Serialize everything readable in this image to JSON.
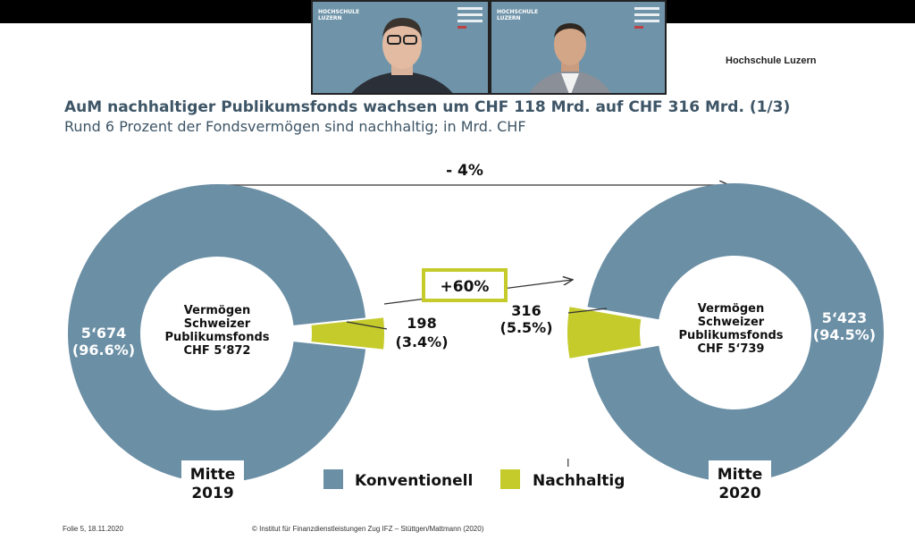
{
  "header": {
    "logo": "Hochschule Luzern",
    "title": "AuM nachhaltiger Publikumsfonds wachsen um CHF 118 Mrd. auf CHF 316 Mrd. (1/3)",
    "subtitle": "Rund 6 Prozent der Fondsvermögen sind nachhaltig; in Mrd. CHF"
  },
  "video": {
    "brand_line1": "HOCHSCHULE",
    "brand_line2": "LUZERN"
  },
  "chart_data": {
    "type": "pie",
    "change_total": "- 4%",
    "change_sustainable": "+60%",
    "colors": {
      "konventionell": "#6b8fa5",
      "nachhaltig": "#c4cb2b"
    },
    "periods": [
      {
        "label": "Mitte 2019",
        "label_line1": "Mitte",
        "label_line2": "2019",
        "center_lines": [
          "Vermögen",
          "Schweizer",
          "Publikumsfonds",
          "CHF 5‘872"
        ],
        "slices": [
          {
            "name": "Konventionell",
            "value": 5674,
            "value_label": "5‘674",
            "pct_label": "(96.6%)"
          },
          {
            "name": "Nachhaltig",
            "value": 198,
            "value_label": "198",
            "pct_label": "(3.4%)"
          }
        ]
      },
      {
        "label": "Mitte 2020",
        "label_line1": "Mitte",
        "label_line2": "2020",
        "center_lines": [
          "Vermögen",
          "Schweizer",
          "Publikumsfonds",
          "CHF 5‘739"
        ],
        "slices": [
          {
            "name": "Konventionell",
            "value": 5423,
            "value_label": "5‘423",
            "pct_label": "(94.5%)"
          },
          {
            "name": "Nachhaltig",
            "value": 316,
            "value_label": "316",
            "pct_label": "(5.5%)"
          }
        ]
      }
    ],
    "legend": [
      "Konventionell",
      "Nachhaltig"
    ]
  },
  "footer": {
    "slide": "Folie 5, 18.11.2020",
    "copyright": "© Institut für Finanzdienstleistungen Zug IFZ – Stüttgen/Mattmann (2020)"
  }
}
